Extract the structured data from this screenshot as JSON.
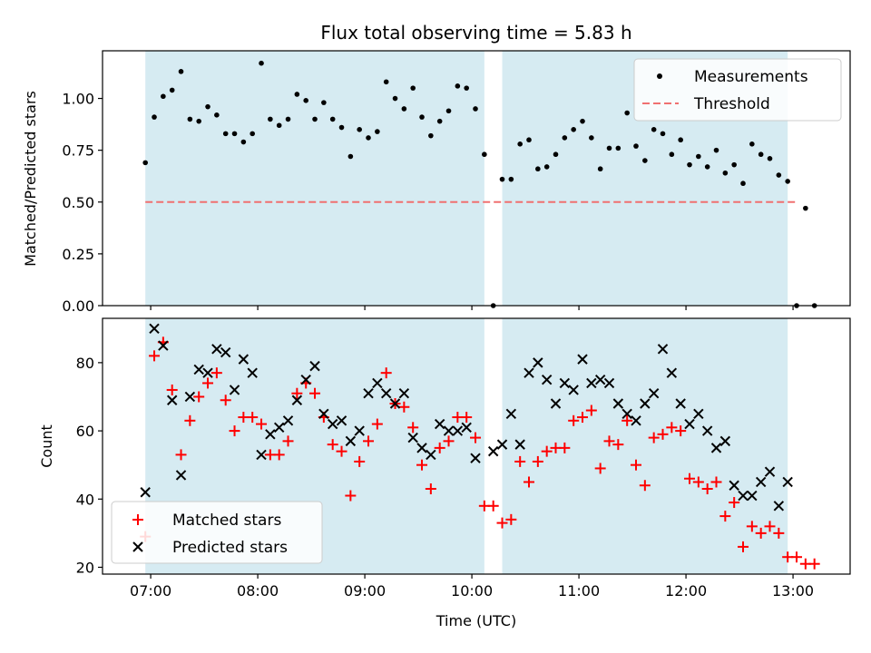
{
  "chart_data": [
    {
      "type": "scatter",
      "title": "Flux total observing time = 5.83 h",
      "xlabel": "",
      "ylabel": "Matched/Predicted stars",
      "x_ticks": [
        "07:00",
        "08:00",
        "09:00",
        "10:00",
        "11:00",
        "12:00",
        "13:00"
      ],
      "x_range": [
        "06:33",
        "13:32"
      ],
      "ylim": [
        0,
        1.23
      ],
      "y_ticks": [
        "0.00",
        "0.25",
        "0.50",
        "0.75",
        "1.00"
      ],
      "y_tick_values": [
        0,
        0.25,
        0.5,
        0.75,
        1.0
      ],
      "observing_windows": [
        [
          "06:57",
          "10:07"
        ],
        [
          "10:17",
          "12:57"
        ]
      ],
      "legend": {
        "position": "upper-right",
        "entries": [
          "Measurements",
          "Threshold"
        ]
      },
      "series": [
        {
          "name": "Measurements",
          "marker": "dot",
          "color": "#000000",
          "times": [
            "06:57",
            "07:02",
            "07:07",
            "07:12",
            "07:17",
            "07:22",
            "07:27",
            "07:32",
            "07:37",
            "07:42",
            "07:47",
            "07:52",
            "07:57",
            "08:02",
            "08:07",
            "08:12",
            "08:17",
            "08:22",
            "08:27",
            "08:32",
            "08:37",
            "08:42",
            "08:47",
            "08:52",
            "08:57",
            "09:02",
            "09:07",
            "09:12",
            "09:17",
            "09:22",
            "09:27",
            "09:32",
            "09:37",
            "09:42",
            "09:47",
            "09:52",
            "09:57",
            "10:02",
            "10:07",
            "10:12",
            "10:17",
            "10:22",
            "10:27",
            "10:32",
            "10:37",
            "10:42",
            "10:47",
            "10:52",
            "10:57",
            "11:02",
            "11:07",
            "11:12",
            "11:17",
            "11:22",
            "11:27",
            "11:32",
            "11:37",
            "11:42",
            "11:47",
            "11:52",
            "11:57",
            "12:02",
            "12:07",
            "12:12",
            "12:17",
            "12:22",
            "12:27",
            "12:32",
            "12:37",
            "12:42",
            "12:47",
            "12:52",
            "12:57",
            "13:02",
            "13:07",
            "13:12"
          ],
          "values": [
            0.69,
            0.91,
            1.01,
            1.04,
            1.13,
            0.9,
            0.89,
            0.96,
            0.92,
            0.83,
            0.83,
            0.79,
            0.83,
            1.17,
            0.9,
            0.87,
            0.9,
            1.02,
            0.99,
            0.9,
            0.98,
            0.9,
            0.86,
            0.72,
            0.85,
            0.81,
            0.84,
            1.08,
            1.0,
            0.95,
            1.05,
            0.91,
            0.82,
            0.89,
            0.94,
            1.06,
            1.05,
            0.95,
            0.73,
            0.0,
            0.61,
            0.61,
            0.78,
            0.8,
            0.66,
            0.67,
            0.73,
            0.81,
            0.85,
            0.89,
            0.81,
            0.66,
            0.76,
            0.76,
            0.93,
            0.77,
            0.7,
            0.85,
            0.83,
            0.73,
            0.8,
            0.68,
            0.72,
            0.67,
            0.75,
            0.64,
            0.68,
            0.59,
            0.78,
            0.73,
            0.71,
            0.63,
            0.6,
            0.0,
            0.47,
            0.0
          ]
        },
        {
          "name": "Threshold",
          "line_style": "dashed",
          "color": "#f07070",
          "x": [
            "06:57",
            "13:02"
          ],
          "values": [
            0.5,
            0.5
          ]
        }
      ]
    },
    {
      "type": "scatter",
      "title": "",
      "xlabel": "Time (UTC)",
      "ylabel": "Count",
      "x_ticks": [
        "07:00",
        "08:00",
        "09:00",
        "10:00",
        "11:00",
        "12:00",
        "13:00"
      ],
      "x_range": [
        "06:33",
        "13:32"
      ],
      "ylim": [
        18,
        93
      ],
      "y_ticks": [
        "20",
        "40",
        "60",
        "80"
      ],
      "y_tick_values": [
        20,
        40,
        60,
        80
      ],
      "observing_windows": [
        [
          "06:57",
          "10:07"
        ],
        [
          "10:17",
          "12:57"
        ]
      ],
      "legend": {
        "position": "lower-left",
        "entries": [
          "Matched stars",
          "Predicted stars"
        ]
      },
      "series": [
        {
          "name": "Matched stars",
          "marker": "plus",
          "color": "#ff0000",
          "times": [
            "06:57",
            "07:02",
            "07:07",
            "07:12",
            "07:17",
            "07:22",
            "07:27",
            "07:32",
            "07:37",
            "07:42",
            "07:47",
            "07:52",
            "07:57",
            "08:02",
            "08:07",
            "08:12",
            "08:17",
            "08:22",
            "08:27",
            "08:32",
            "08:37",
            "08:42",
            "08:47",
            "08:52",
            "08:57",
            "09:02",
            "09:07",
            "09:12",
            "09:17",
            "09:22",
            "09:27",
            "09:32",
            "09:37",
            "09:42",
            "09:47",
            "09:52",
            "09:57",
            "10:02",
            "10:07",
            "10:12",
            "10:17",
            "10:22",
            "10:27",
            "10:32",
            "10:37",
            "10:42",
            "10:47",
            "10:52",
            "10:57",
            "11:02",
            "11:07",
            "11:12",
            "11:17",
            "11:22",
            "11:27",
            "11:32",
            "11:37",
            "11:42",
            "11:47",
            "11:52",
            "11:57",
            "12:02",
            "12:07",
            "12:12",
            "12:17",
            "12:22",
            "12:27",
            "12:32",
            "12:37",
            "12:42",
            "12:47",
            "12:52",
            "12:57",
            "13:02",
            "13:07",
            "13:12"
          ],
          "values": [
            29,
            82,
            86,
            72,
            53,
            63,
            70,
            74,
            77,
            69,
            60,
            64,
            64,
            62,
            53,
            53,
            57,
            71,
            74,
            71,
            64,
            56,
            54,
            41,
            51,
            57,
            62,
            77,
            68,
            67,
            61,
            50,
            43,
            55,
            57,
            64,
            64,
            58,
            38,
            38,
            33,
            34,
            51,
            45,
            51,
            54,
            55,
            55,
            63,
            64,
            66,
            49,
            57,
            56,
            63,
            50,
            44,
            58,
            59,
            61,
            60,
            46,
            45,
            43,
            45,
            35,
            39,
            26,
            32,
            30,
            32,
            30,
            23,
            23,
            21,
            21
          ]
        },
        {
          "name": "Predicted stars",
          "marker": "x",
          "color": "#000000",
          "times": [
            "06:57",
            "07:02",
            "07:07",
            "07:12",
            "07:17",
            "07:22",
            "07:27",
            "07:32",
            "07:37",
            "07:42",
            "07:47",
            "07:52",
            "07:57",
            "08:02",
            "08:07",
            "08:12",
            "08:17",
            "08:22",
            "08:27",
            "08:32",
            "08:37",
            "08:42",
            "08:47",
            "08:52",
            "08:57",
            "09:02",
            "09:07",
            "09:12",
            "09:17",
            "09:22",
            "09:27",
            "09:32",
            "09:37",
            "09:42",
            "09:47",
            "09:52",
            "09:57",
            "10:02",
            "10:07",
            "10:12",
            "10:17",
            "10:22",
            "10:27",
            "10:32",
            "10:37",
            "10:42",
            "10:47",
            "10:52",
            "10:57",
            "11:02",
            "11:07",
            "11:12",
            "11:17",
            "11:22",
            "11:27",
            "11:32",
            "11:37",
            "11:42",
            "11:47",
            "11:52",
            "11:57",
            "12:02",
            "12:07",
            "12:12",
            "12:17",
            "12:22",
            "12:27",
            "12:32",
            "12:37",
            "12:42",
            "12:47",
            "12:52",
            "12:57",
            "13:02",
            "13:07"
          ],
          "values": [
            42,
            90,
            85,
            69,
            47,
            70,
            78,
            77,
            84,
            83,
            72,
            81,
            77,
            53,
            59,
            61,
            63,
            69,
            75,
            79,
            65,
            62,
            63,
            57,
            60,
            71,
            74,
            71,
            68,
            71,
            58,
            55,
            53,
            62,
            60,
            60,
            61,
            52,
            null,
            54,
            56,
            65,
            56,
            77,
            80,
            75,
            68,
            74,
            72,
            81,
            74,
            75,
            74,
            68,
            65,
            63,
            68,
            71,
            84,
            77,
            68,
            62,
            65,
            60,
            55,
            57,
            44,
            41,
            41,
            45,
            48,
            38,
            45,
            null,
            null
          ]
        }
      ]
    }
  ]
}
